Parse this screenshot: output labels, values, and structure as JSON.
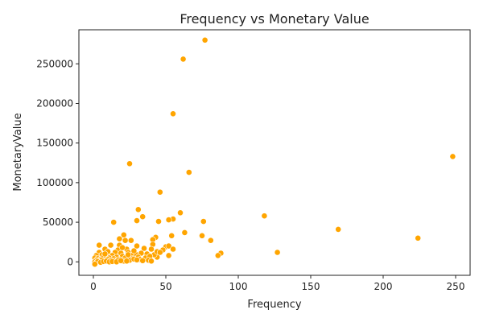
{
  "chart_data": {
    "type": "scatter",
    "title": "Frequency vs Monetary Value",
    "xlabel": "Frequency",
    "ylabel": "MonetaryValue",
    "xlim": [
      -10,
      260
    ],
    "ylim": [
      -17000,
      293000
    ],
    "xticks": [
      0,
      50,
      100,
      150,
      200,
      250
    ],
    "yticks": [
      0,
      50000,
      100000,
      150000,
      200000,
      250000
    ],
    "xtick_labels": [
      "0",
      "50",
      "100",
      "150",
      "200",
      "250"
    ],
    "ytick_labels": [
      "0",
      "50000",
      "100000",
      "150000",
      "200000",
      "250000"
    ],
    "grid": false,
    "legend": "none",
    "marker_color": "#FFA500",
    "points": [
      [
        77,
        280000
      ],
      [
        62,
        256000
      ],
      [
        55,
        187000
      ],
      [
        25,
        124000
      ],
      [
        66,
        113000
      ],
      [
        46,
        88000
      ],
      [
        248,
        133000
      ],
      [
        31,
        66000
      ],
      [
        60,
        62000
      ],
      [
        34,
        57000
      ],
      [
        118,
        58000
      ],
      [
        55,
        54000
      ],
      [
        52,
        53000
      ],
      [
        30,
        52000
      ],
      [
        76,
        51000
      ],
      [
        45,
        51000
      ],
      [
        14,
        50000
      ],
      [
        169,
        41000
      ],
      [
        63,
        37000
      ],
      [
        21,
        34000
      ],
      [
        54,
        33000
      ],
      [
        75,
        33000
      ],
      [
        224,
        30000
      ],
      [
        81,
        27000
      ],
      [
        22,
        27000
      ],
      [
        26,
        27000
      ],
      [
        43,
        31000
      ],
      [
        41,
        28000
      ],
      [
        4,
        21000
      ],
      [
        12,
        21000
      ],
      [
        18,
        21000
      ],
      [
        30,
        20000
      ],
      [
        41,
        22000
      ],
      [
        50,
        19000
      ],
      [
        52,
        20000
      ],
      [
        8,
        16000
      ],
      [
        17,
        15000
      ],
      [
        23,
        16000
      ],
      [
        35,
        17000
      ],
      [
        40,
        16000
      ],
      [
        48,
        15000
      ],
      [
        55,
        16000
      ],
      [
        127,
        12000
      ],
      [
        88,
        11000
      ],
      [
        86,
        8000
      ],
      [
        52,
        8000
      ],
      [
        44,
        6000
      ],
      [
        4,
        12000
      ],
      [
        10,
        13000
      ],
      [
        15,
        12000
      ],
      [
        19,
        11000
      ],
      [
        24,
        12000
      ],
      [
        29,
        10000
      ],
      [
        33,
        11000
      ],
      [
        37,
        10000
      ],
      [
        42,
        9000
      ],
      [
        2,
        8000
      ],
      [
        6,
        9000
      ],
      [
        9,
        7000
      ],
      [
        13,
        8000
      ],
      [
        16,
        6000
      ],
      [
        20,
        7000
      ],
      [
        26,
        8000
      ],
      [
        31,
        6000
      ],
      [
        36,
        5000
      ],
      [
        39,
        7000
      ],
      [
        1,
        5000
      ],
      [
        3,
        4000
      ],
      [
        5,
        3000
      ],
      [
        7,
        6000
      ],
      [
        11,
        5000
      ],
      [
        14,
        4000
      ],
      [
        18,
        3000
      ],
      [
        22,
        5000
      ],
      [
        27,
        4000
      ],
      [
        32,
        3000
      ],
      [
        38,
        2000
      ],
      [
        40,
        1000
      ],
      [
        2,
        2000
      ],
      [
        4,
        1000
      ],
      [
        6,
        2500
      ],
      [
        8,
        1500
      ],
      [
        10,
        3000
      ],
      [
        12,
        2000
      ],
      [
        15,
        1500
      ],
      [
        17,
        2500
      ],
      [
        21,
        1000
      ],
      [
        25,
        2000
      ],
      [
        28,
        3500
      ],
      [
        34,
        1500
      ],
      [
        1,
        0
      ],
      [
        2,
        -1000
      ],
      [
        3,
        500
      ],
      [
        1,
        -3000
      ],
      [
        5,
        -500
      ],
      [
        7,
        500
      ],
      [
        9,
        1000
      ],
      [
        11,
        0
      ],
      [
        13,
        500
      ],
      [
        16,
        0
      ],
      [
        19,
        1500
      ],
      [
        23,
        1000
      ],
      [
        30,
        2500
      ],
      [
        44,
        13000
      ],
      [
        46,
        12000
      ],
      [
        28,
        14000
      ],
      [
        20,
        18000
      ],
      [
        18,
        29000
      ],
      [
        24,
        9000
      ],
      [
        8,
        10000
      ]
    ]
  }
}
